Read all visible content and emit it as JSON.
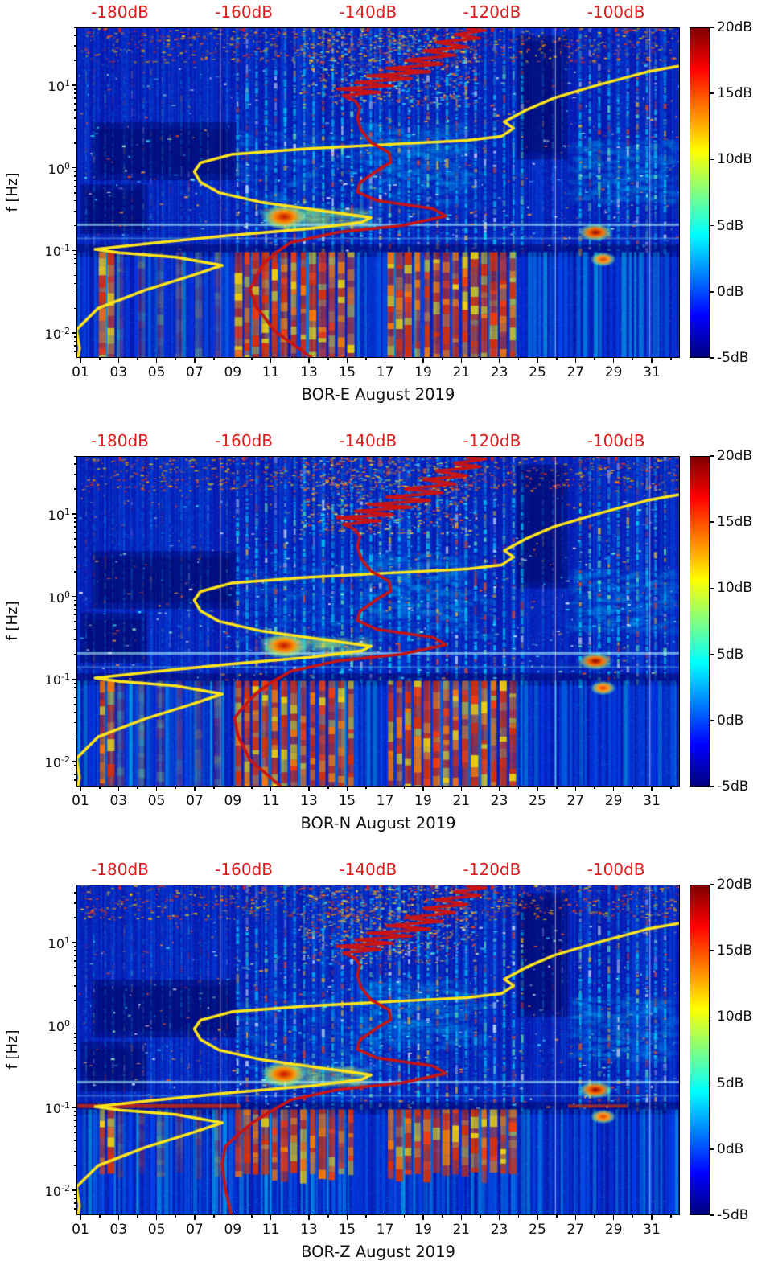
{
  "chart_data": {
    "type": "heatmap",
    "panels": [
      {
        "id": "BOR-E",
        "title": "BOR-E August 2019",
        "seed": 101,
        "red_tail": [
          [
            -149,
            0.005
          ],
          [
            -155,
            0.0105
          ],
          [
            -158,
            0.021
          ],
          [
            -159,
            0.034
          ],
          [
            -158,
            0.047
          ],
          [
            -157,
            0.067
          ],
          [
            -155,
            0.092
          ],
          [
            -152.5,
            0.124
          ]
        ]
      },
      {
        "id": "BOR-N",
        "title": "BOR-N August 2019",
        "seed": 202,
        "red_tail": [
          [
            -154,
            0.005
          ],
          [
            -159,
            0.0105
          ],
          [
            -161,
            0.021
          ],
          [
            -161.5,
            0.034
          ],
          [
            -160,
            0.047
          ],
          [
            -158,
            0.067
          ],
          [
            -155.5,
            0.092
          ],
          [
            -152.5,
            0.124
          ]
        ]
      },
      {
        "id": "BOR-Z",
        "title": "BOR-Z August 2019",
        "seed": 303,
        "red_tail": [
          [
            -162,
            0.005
          ],
          [
            -163,
            0.0105
          ],
          [
            -163.5,
            0.021
          ],
          [
            -163,
            0.034
          ],
          [
            -161,
            0.047
          ],
          [
            -158.5,
            0.067
          ],
          [
            -155.5,
            0.092
          ],
          [
            -152.5,
            0.124
          ]
        ],
        "extra_bands": [
          {
            "f": 0.105,
            "days": [
              0.85,
              9.4
            ],
            "color": "228,40,0",
            "alpha": 0.75,
            "h": 5
          },
          {
            "f": 0.105,
            "days": [
              26.6,
              29.7
            ],
            "color": "228,56,0",
            "alpha": 0.65,
            "h": 4
          }
        ]
      }
    ],
    "x_axis": {
      "tick_days": [
        1,
        3,
        5,
        7,
        9,
        11,
        13,
        15,
        17,
        19,
        21,
        23,
        25,
        27,
        29,
        31
      ],
      "tick_labels": [
        "01",
        "03",
        "05",
        "07",
        "09",
        "11",
        "13",
        "15",
        "17",
        "19",
        "21",
        "23",
        "25",
        "27",
        "29",
        "31"
      ],
      "domain_days": [
        0.79,
        32.48
      ]
    },
    "y_axis": {
      "label": "f [Hz]",
      "scale": "log",
      "tick_labels": [
        "10^1",
        "10^0",
        "10^-1",
        "10^-2"
      ],
      "tick_logf": [
        1,
        0,
        -1,
        -2
      ],
      "domain_logf": [
        1.7,
        -2.3
      ]
    },
    "top_axis": {
      "color": "#dd1c1c",
      "tick_dB": [
        -180,
        -160,
        -140,
        -120,
        -100
      ],
      "tick_labels": [
        "-180dB",
        "-160dB",
        "-140dB",
        "-120dB",
        "-100dB"
      ],
      "domain_dB": [
        -187,
        -89.7
      ]
    },
    "colorbar": {
      "tick_values": [
        20,
        15,
        10,
        5,
        0,
        -5
      ],
      "tick_labels": [
        "20dB",
        "15dB",
        "10dB",
        "5dB",
        "0dB",
        "-5dB"
      ],
      "domain": [
        -5,
        20
      ],
      "colormap": "jet"
    },
    "overlays": {
      "yellow_curve": {
        "color": "#ffe41c",
        "width": 3.5,
        "points_dB_Hz": [
          [
            -187,
            0.004
          ],
          [
            -186.5,
            0.0065
          ],
          [
            -187,
            0.011
          ],
          [
            -183.5,
            0.02
          ],
          [
            -176,
            0.033
          ],
          [
            -169,
            0.048
          ],
          [
            -163.5,
            0.066
          ],
          [
            -171,
            0.083
          ],
          [
            -180,
            0.094
          ],
          [
            -184,
            0.103
          ],
          [
            -175,
            0.122
          ],
          [
            -163,
            0.15
          ],
          [
            -149,
            0.185
          ],
          [
            -141,
            0.22
          ],
          [
            -139.5,
            0.25
          ],
          [
            -147,
            0.3
          ],
          [
            -157,
            0.38
          ],
          [
            -164,
            0.5
          ],
          [
            -167,
            0.67
          ],
          [
            -168,
            0.9
          ],
          [
            -167,
            1.15
          ],
          [
            -162,
            1.45
          ],
          [
            -150,
            1.7
          ],
          [
            -135,
            1.95
          ],
          [
            -124,
            2.15
          ],
          [
            -118.5,
            2.4
          ],
          [
            -116.5,
            3.0
          ],
          [
            -118,
            3.6
          ],
          [
            -114.5,
            5.0
          ],
          [
            -110,
            7
          ],
          [
            -103,
            10
          ],
          [
            -95,
            14.5
          ],
          [
            -90,
            17
          ]
        ]
      },
      "red_curve": {
        "color": "#c81414",
        "width": 3.6,
        "points_main_dB_Hz": [
          [
            -145,
            0.165
          ],
          [
            -134.6,
            0.2
          ],
          [
            -127.4,
            0.26
          ],
          [
            -129.5,
            0.32
          ],
          [
            -138.5,
            0.4
          ],
          [
            -141.7,
            0.51
          ],
          [
            -141.3,
            0.66
          ],
          [
            -138.5,
            0.93
          ],
          [
            -136.3,
            1.16
          ],
          [
            -136.6,
            1.53
          ],
          [
            -139.5,
            2.03
          ],
          [
            -141.1,
            2.85
          ],
          [
            -141.7,
            4.0
          ],
          [
            -141.3,
            5.35
          ],
          [
            -142.1,
            6.5
          ],
          [
            -144,
            7.5
          ],
          [
            -138,
            8.2
          ],
          [
            -145,
            9
          ],
          [
            -136,
            9.8
          ],
          [
            -142,
            10.8
          ],
          [
            -133,
            12
          ],
          [
            -140,
            13
          ],
          [
            -130,
            14.5
          ],
          [
            -137,
            16
          ],
          [
            -128,
            18
          ],
          [
            -134,
            20
          ],
          [
            -126,
            23
          ],
          [
            -131,
            26
          ],
          [
            -124,
            29
          ],
          [
            -129,
            33
          ],
          [
            -122,
            37
          ],
          [
            -126,
            41
          ],
          [
            -121,
            46
          ],
          [
            -124,
            48
          ]
        ]
      }
    },
    "texture": {
      "base_color": "#0a18b4",
      "stripe_bright_days": [
        9.25,
        9.75,
        10.25,
        10.75,
        11.25,
        11.75,
        12.25,
        12.75,
        13.25,
        13.75,
        14.25,
        14.75,
        15.25,
        15.75,
        16.25,
        16.75,
        17.25,
        17.75,
        18.25,
        18.75,
        19.25,
        19.75,
        20.25,
        20.75,
        21.25,
        21.75,
        22.25,
        22.75,
        23.25,
        23.75,
        24.2,
        27.25,
        27.75,
        28.25,
        28.75,
        29.25,
        29.75,
        30.25,
        30.75,
        31.2,
        31.7
      ],
      "stripe_faint_days": [
        1.3,
        1.7,
        2.3,
        2.7,
        3.3,
        3.7,
        4.3,
        4.7,
        5.3,
        5.7,
        6.3,
        6.7,
        7.3,
        7.7,
        8.7,
        25.3,
        25.8,
        26.3
      ],
      "hot_bar_days": [
        2.15,
        2.6,
        9.3,
        9.75,
        10.2,
        10.7,
        11.2,
        11.7,
        12.2,
        12.7,
        13.2,
        13.7,
        14.2,
        14.7,
        15.2,
        17.3,
        17.75,
        18.2,
        18.7,
        19.2,
        19.7,
        20.2,
        20.7,
        21.2,
        21.7,
        22.2,
        22.7,
        23.2,
        23.7
      ],
      "hot_bar_faint_days": [
        3.1,
        4.2,
        5.2,
        6.2,
        7.2,
        8.2
      ],
      "hot_bar_colors": [
        "#e03000",
        "#ff7a00",
        "#e03000",
        "#ffd400",
        "#ff3c00",
        "#ff7a00",
        "#e03000"
      ],
      "cyan_haze": [
        {
          "days": [
            9.0,
            22.5
          ],
          "logf": [
            -0.55,
            0.45
          ]
        },
        {
          "days": [
            26.5,
            32.4
          ],
          "logf": [
            -0.45,
            0.35
          ]
        },
        {
          "days": [
            15.5,
            21.5
          ],
          "logf": [
            -0.3,
            0.55
          ]
        },
        {
          "days": [
            10.4,
            16.3
          ],
          "logf": [
            -0.75,
            -0.48
          ],
          "green": true
        }
      ],
      "dark_patch": [
        {
          "days": [
            1.6,
            9.2
          ],
          "logf": [
            -0.15,
            0.55
          ]
        },
        {
          "days": [
            23.9,
            26.6
          ],
          "logf": [
            0.1,
            1.6
          ]
        },
        {
          "days": [
            1.0,
            4.5
          ],
          "logf": [
            -0.8,
            -0.2
          ]
        }
      ],
      "h_lines": [
        {
          "f": 0.205,
          "rgb": "174,243,255",
          "alpha": 0.6,
          "h": 3
        },
        {
          "f": 0.14,
          "rgb": "125,232,255",
          "alpha": 0.33,
          "h": 2
        }
      ],
      "dark_band": {
        "logf_top": -0.93,
        "logf_bot": -1.08,
        "alpha": 0.45
      },
      "blobs": [
        {
          "day": 11.7,
          "f": 0.255,
          "rx_days": 1.25,
          "ry_logf": 0.16,
          "color": "#ff8c00",
          "core": "#c01400"
        },
        {
          "day": 28.05,
          "f": 0.165,
          "rx_days": 0.95,
          "ry_logf": 0.11,
          "color": "#ff7000",
          "core": "#8f0000"
        },
        {
          "day": 28.45,
          "f": 0.078,
          "rx_days": 0.7,
          "ry_logf": 0.09,
          "color": "#ff9a20",
          "core": "#e04000"
        }
      ],
      "white_gap_days": [
        8.32,
        25.92,
        30.88
      ],
      "top_speckle": {
        "days": [
          1.0,
          32.4
        ],
        "logf": [
          1.28,
          1.7
        ],
        "count": 700
      },
      "mid_speckle_cluster": {
        "days": [
          12.5,
          21.8
        ],
        "logf": [
          0.75,
          1.68
        ],
        "count": 650
      },
      "scatter_dashes": {
        "days": [
          0.9,
          32.4
        ],
        "logf": [
          -1.0,
          1.25
        ],
        "count": 380
      },
      "bottom_hot_logf": {
        "default": [
          -1.02,
          -2.3
        ],
        "BOR-Z": [
          -1.02,
          -1.78
        ]
      }
    }
  }
}
